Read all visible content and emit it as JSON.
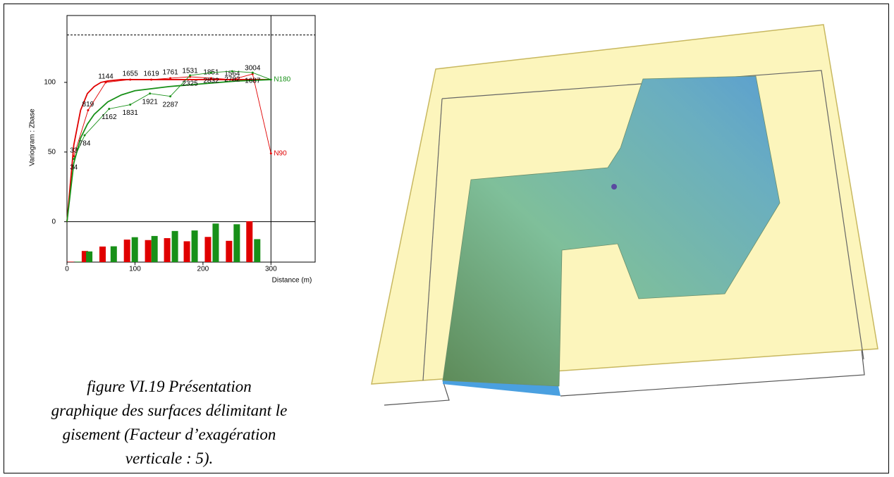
{
  "chart_data": {
    "type": "variogram",
    "y_label": "Variogram : Zbase",
    "x_label": "Distance (m)",
    "xlim": [
      0,
      365
    ],
    "ylim": [
      -29,
      148
    ],
    "xticks": [
      0,
      100,
      200,
      300
    ],
    "yticks": [
      0,
      50,
      100
    ],
    "hline_dashed": 134,
    "vline": 300,
    "series": [
      {
        "name": "N90",
        "color": "#e00000",
        "x": [
          10,
          31,
          57,
          93,
          124,
          152,
          181,
          212,
          243,
          273,
          300
        ],
        "values": [
          47,
          80,
          100,
          102,
          102,
          103,
          104,
          103,
          102,
          106,
          49
        ],
        "pairs": [
          33,
          819,
          1144,
          1655,
          1619,
          1761,
          1531,
          1851,
          1564,
          3004,
          null
        ]
      },
      {
        "name": "N180",
        "color": "#189018",
        "x": [
          10,
          26,
          62,
          93,
          122,
          152,
          181,
          212,
          243,
          273,
          300
        ],
        "values": [
          45,
          62,
          81,
          84,
          92,
          90,
          105,
          107,
          108,
          107,
          102
        ],
        "pairs": [
          34,
          784,
          1162,
          1831,
          1921,
          2287,
          2325,
          2832,
          2782,
          1687,
          null
        ]
      }
    ],
    "models": [
      {
        "color": "#e00000",
        "x": [
          0,
          10,
          20,
          30,
          40,
          50,
          60,
          80,
          100,
          150,
          200,
          250,
          300
        ],
        "values": [
          0,
          55,
          80,
          92,
          97,
          100,
          101,
          102,
          102,
          102,
          102,
          102,
          102
        ]
      },
      {
        "color": "#189018",
        "x": [
          0,
          10,
          20,
          30,
          40,
          60,
          80,
          100,
          150,
          200,
          250,
          300
        ],
        "values": [
          0,
          42,
          60,
          70,
          77,
          86,
          91,
          94,
          97,
          99,
          101,
          102
        ]
      }
    ]
  },
  "caption": [
    "figure VI.19 Présentation",
    "graphique des surfaces délimitant le",
    "gisement (Facteur d’exagération",
    "verticale : 5)."
  ]
}
